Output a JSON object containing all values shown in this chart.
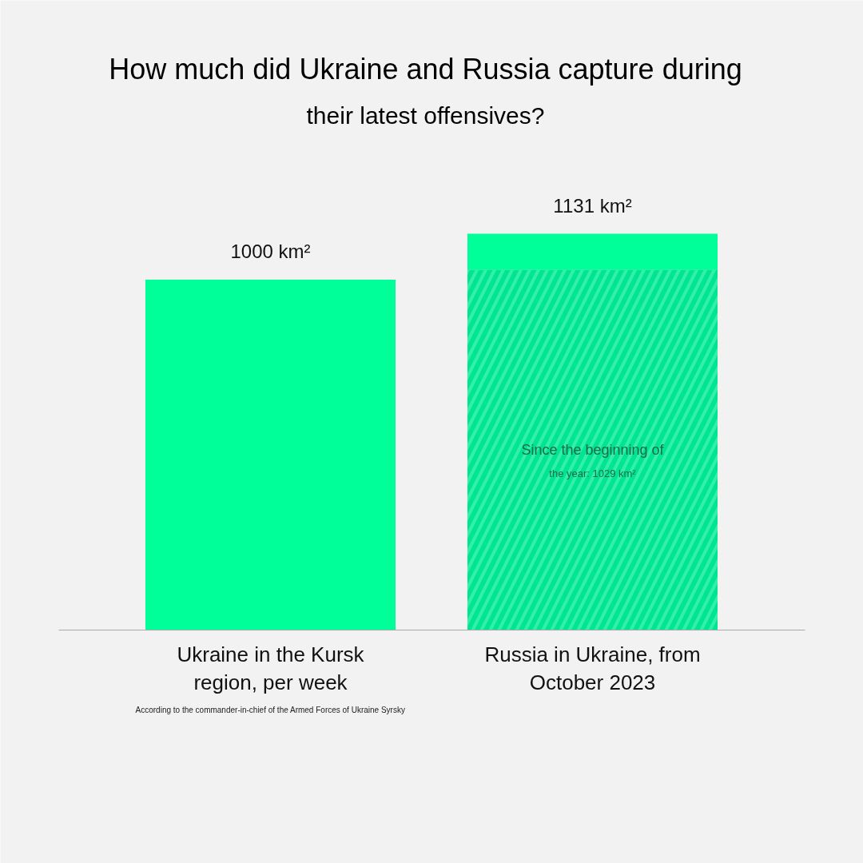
{
  "chart_data": {
    "type": "bar",
    "stacked": true,
    "totals": [
      "1000 km²",
      "1131 km²"
    ],
    "title": "How much did Ukraine and Russia capture during their latest offensives?",
    "categories": [
      "Ukraine in the Kursk region, per week",
      "Russia in Ukraine, from October 2023"
    ],
    "series": [
      {
        "color": "#00e592",
        "values": [
          null,
          1029
        ],
        "value_labels": [
          null,
          "Since the beginning of the year: 1029 km²"
        ]
      },
      {
        "color": "#00ff99",
        "values": [
          1000,
          102
        ]
      }
    ],
    "annotations": [
      "According to the commander-in-chief of the Armed Forces of Ukraine Syrsky"
    ],
    "grid": false
  }
}
